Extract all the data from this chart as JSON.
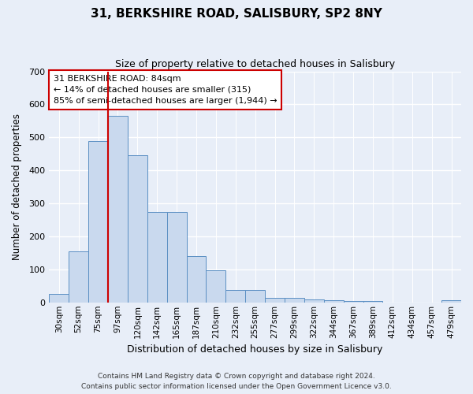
{
  "title": "31, BERKSHIRE ROAD, SALISBURY, SP2 8NY",
  "subtitle": "Size of property relative to detached houses in Salisbury",
  "xlabel": "Distribution of detached houses by size in Salisbury",
  "ylabel": "Number of detached properties",
  "bar_labels": [
    "30sqm",
    "52sqm",
    "75sqm",
    "97sqm",
    "120sqm",
    "142sqm",
    "165sqm",
    "187sqm",
    "210sqm",
    "232sqm",
    "255sqm",
    "277sqm",
    "299sqm",
    "322sqm",
    "344sqm",
    "367sqm",
    "389sqm",
    "412sqm",
    "434sqm",
    "457sqm",
    "479sqm"
  ],
  "bar_values": [
    25,
    155,
    490,
    565,
    445,
    275,
    275,
    140,
    97,
    37,
    37,
    13,
    13,
    10,
    7,
    4,
    4,
    0,
    0,
    0,
    7
  ],
  "bar_color": "#c9d9ee",
  "bar_edge_color": "#5b8fc3",
  "vline_x": 2.5,
  "vline_color": "#cc0000",
  "annotation_title": "31 BERKSHIRE ROAD: 84sqm",
  "annotation_line1": "← 14% of detached houses are smaller (315)",
  "annotation_line2": "85% of semi-detached houses are larger (1,944) →",
  "annotation_box_color": "#ffffff",
  "annotation_box_edge": "#cc0000",
  "ylim": [
    0,
    700
  ],
  "yticks": [
    0,
    100,
    200,
    300,
    400,
    500,
    600,
    700
  ],
  "footnote1": "Contains HM Land Registry data © Crown copyright and database right 2024.",
  "footnote2": "Contains public sector information licensed under the Open Government Licence v3.0.",
  "bg_color": "#e8eef8",
  "plot_bg_color": "#e8eef8"
}
